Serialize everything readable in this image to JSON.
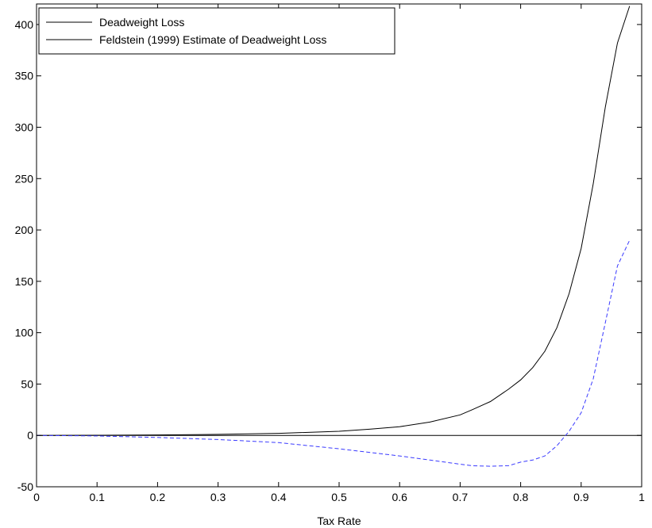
{
  "chart_data": {
    "type": "line",
    "title": "",
    "xlabel": "Tax Rate",
    "ylabel": "",
    "xlim": [
      0,
      1
    ],
    "ylim": [
      -50,
      420
    ],
    "xticks": [
      0,
      0.1,
      0.2,
      0.3,
      0.4,
      0.5,
      0.6,
      0.7,
      0.8,
      0.9,
      1
    ],
    "xtick_labels": [
      "0",
      "0.1",
      "0.2",
      "0.3",
      "0.4",
      "0.5",
      "0.6",
      "0.7",
      "0.8",
      "0.9",
      "1"
    ],
    "yticks": [
      -50,
      0,
      50,
      100,
      150,
      200,
      250,
      300,
      350,
      400
    ],
    "ytick_labels": [
      "-50",
      "0",
      "50",
      "100",
      "150",
      "200",
      "250",
      "300",
      "350",
      "400"
    ],
    "grid": false,
    "legend_position": "top-left",
    "reference_line": {
      "y": 0,
      "color": "#000000"
    },
    "series": [
      {
        "name": "Deadweight Loss",
        "color": "#000000",
        "style": "solid",
        "x": [
          0,
          0.1,
          0.2,
          0.3,
          0.4,
          0.5,
          0.55,
          0.6,
          0.65,
          0.7,
          0.72,
          0.75,
          0.78,
          0.8,
          0.82,
          0.84,
          0.86,
          0.88,
          0.9,
          0.92,
          0.94,
          0.96,
          0.98
        ],
        "y": [
          0,
          0.2,
          0.5,
          1,
          2,
          4,
          6,
          8.5,
          13,
          20,
          25,
          33,
          45,
          54,
          66,
          82,
          105,
          138,
          182,
          245,
          320,
          382,
          418
        ]
      },
      {
        "name": "Feldstein (1999) Estimate of Deadweight Loss",
        "color": "#3a3aff",
        "style": "dashed",
        "x": [
          0,
          0.1,
          0.2,
          0.3,
          0.4,
          0.5,
          0.6,
          0.65,
          0.7,
          0.72,
          0.75,
          0.78,
          0.8,
          0.82,
          0.84,
          0.86,
          0.87,
          0.88,
          0.9,
          0.92,
          0.94,
          0.96,
          0.98
        ],
        "y": [
          0,
          -0.5,
          -2,
          -4,
          -7,
          -13,
          -20,
          -24,
          -28,
          -29.5,
          -30,
          -29.5,
          -26,
          -24,
          -20,
          -10,
          -3,
          4,
          22,
          55,
          110,
          165,
          190
        ]
      }
    ]
  }
}
